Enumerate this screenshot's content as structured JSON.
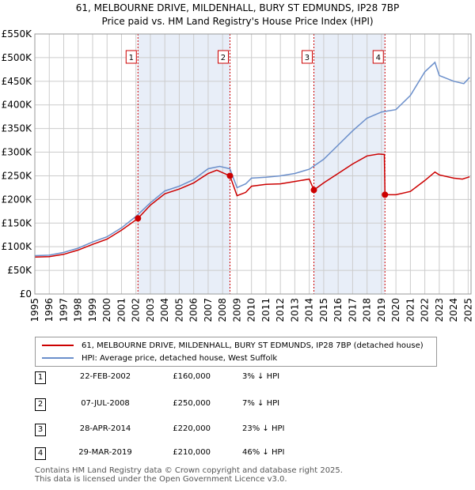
{
  "title_line1": "61, MELBOURNE DRIVE, MILDENHALL, BURY ST EDMUNDS, IP28 7BP",
  "title_line2": "Price paid vs. HM Land Registry's House Price Index (HPI)",
  "colors": {
    "property": "#cc0000",
    "hpi": "#6b8fcb",
    "shade": "#e8eef8",
    "grid": "#cccccc"
  },
  "chart_data": {
    "type": "line",
    "xlim": [
      1995,
      2025.2
    ],
    "ylim": [
      0,
      550000
    ],
    "x_ticks": [
      1995,
      1996,
      1997,
      1998,
      1999,
      2000,
      2001,
      2002,
      2003,
      2004,
      2005,
      2006,
      2007,
      2008,
      2009,
      2010,
      2011,
      2012,
      2013,
      2014,
      2015,
      2016,
      2017,
      2018,
      2019,
      2020,
      2021,
      2022,
      2023,
      2024,
      2025
    ],
    "y_ticks": [
      {
        "value": 0,
        "label": "£0"
      },
      {
        "value": 50000,
        "label": "£50K"
      },
      {
        "value": 100000,
        "label": "£100K"
      },
      {
        "value": 150000,
        "label": "£150K"
      },
      {
        "value": 200000,
        "label": "£200K"
      },
      {
        "value": 250000,
        "label": "£250K"
      },
      {
        "value": 300000,
        "label": "£300K"
      },
      {
        "value": 350000,
        "label": "£350K"
      },
      {
        "value": 400000,
        "label": "£400K"
      },
      {
        "value": 450000,
        "label": "£450K"
      },
      {
        "value": 500000,
        "label": "£500K"
      },
      {
        "value": 550000,
        "label": "£550K"
      }
    ],
    "shaded_ranges": [
      [
        2002.14,
        2008.51
      ],
      [
        2014.32,
        2019.24
      ]
    ],
    "series": [
      {
        "name": "61, MELBOURNE DRIVE, MILDENHALL, BURY ST EDMUNDS, IP28 7BP (detached house)",
        "color": "#cc0000",
        "points": [
          [
            1995,
            78000
          ],
          [
            1996,
            79000
          ],
          [
            1997,
            84000
          ],
          [
            1998,
            93000
          ],
          [
            1999,
            105000
          ],
          [
            2000,
            116000
          ],
          [
            2001,
            135000
          ],
          [
            2002.14,
            160000
          ],
          [
            2003,
            188000
          ],
          [
            2004,
            212000
          ],
          [
            2005,
            222000
          ],
          [
            2006,
            235000
          ],
          [
            2007,
            255000
          ],
          [
            2007.6,
            262000
          ],
          [
            2008.51,
            250000
          ],
          [
            2009,
            208000
          ],
          [
            2009.6,
            215000
          ],
          [
            2010,
            228000
          ],
          [
            2011,
            232000
          ],
          [
            2012,
            233000
          ],
          [
            2013,
            238000
          ],
          [
            2014.0,
            243000
          ],
          [
            2014.32,
            220000
          ],
          [
            2015,
            235000
          ],
          [
            2016,
            255000
          ],
          [
            2017,
            275000
          ],
          [
            2018,
            292000
          ],
          [
            2018.8,
            296000
          ],
          [
            2019.2,
            295000
          ],
          [
            2019.24,
            210000
          ],
          [
            2020,
            210000
          ],
          [
            2021,
            217000
          ],
          [
            2022,
            240000
          ],
          [
            2022.7,
            258000
          ],
          [
            2023,
            252000
          ],
          [
            2024,
            245000
          ],
          [
            2024.6,
            243000
          ],
          [
            2025.1,
            248000
          ]
        ]
      },
      {
        "name": "HPI: Average price, detached house, West Suffolk",
        "color": "#6b8fcb",
        "points": [
          [
            1995,
            81000
          ],
          [
            1996,
            82000
          ],
          [
            1997,
            88000
          ],
          [
            1998,
            97000
          ],
          [
            1999,
            110000
          ],
          [
            2000,
            121000
          ],
          [
            2001,
            140000
          ],
          [
            2002,
            164000
          ],
          [
            2003,
            193000
          ],
          [
            2004,
            218000
          ],
          [
            2005,
            228000
          ],
          [
            2006,
            242000
          ],
          [
            2007,
            265000
          ],
          [
            2007.8,
            270000
          ],
          [
            2008.5,
            265000
          ],
          [
            2009,
            225000
          ],
          [
            2009.6,
            233000
          ],
          [
            2010,
            245000
          ],
          [
            2011,
            247000
          ],
          [
            2012,
            250000
          ],
          [
            2013,
            255000
          ],
          [
            2014,
            264000
          ],
          [
            2015,
            285000
          ],
          [
            2016,
            315000
          ],
          [
            2017,
            345000
          ],
          [
            2018,
            372000
          ],
          [
            2019,
            385000
          ],
          [
            2020,
            390000
          ],
          [
            2021,
            420000
          ],
          [
            2022,
            470000
          ],
          [
            2022.7,
            490000
          ],
          [
            2023,
            462000
          ],
          [
            2024,
            450000
          ],
          [
            2024.7,
            445000
          ],
          [
            2025.1,
            458000
          ]
        ]
      }
    ],
    "sale_markers": [
      {
        "label": "1",
        "x": 2002.14,
        "y": 160000
      },
      {
        "label": "2",
        "x": 2008.51,
        "y": 250000
      },
      {
        "label": "3",
        "x": 2014.32,
        "y": 220000
      },
      {
        "label": "4",
        "x": 2019.24,
        "y": 210000
      }
    ]
  },
  "legend": {
    "property": "61, MELBOURNE DRIVE, MILDENHALL, BURY ST EDMUNDS, IP28 7BP (detached house)",
    "hpi": "HPI: Average price, detached house, West Suffolk"
  },
  "sales": [
    {
      "num": "1",
      "date": "22-FEB-2002",
      "price": "£160,000",
      "pct": "3% ↓ HPI"
    },
    {
      "num": "2",
      "date": "07-JUL-2008",
      "price": "£250,000",
      "pct": "7% ↓ HPI"
    },
    {
      "num": "3",
      "date": "28-APR-2014",
      "price": "£220,000",
      "pct": "23% ↓ HPI"
    },
    {
      "num": "4",
      "date": "29-MAR-2019",
      "price": "£210,000",
      "pct": "46% ↓ HPI"
    }
  ],
  "footer_line1": "Contains HM Land Registry data © Crown copyright and database right 2025.",
  "footer_line2": "This data is licensed under the Open Government Licence v3.0."
}
